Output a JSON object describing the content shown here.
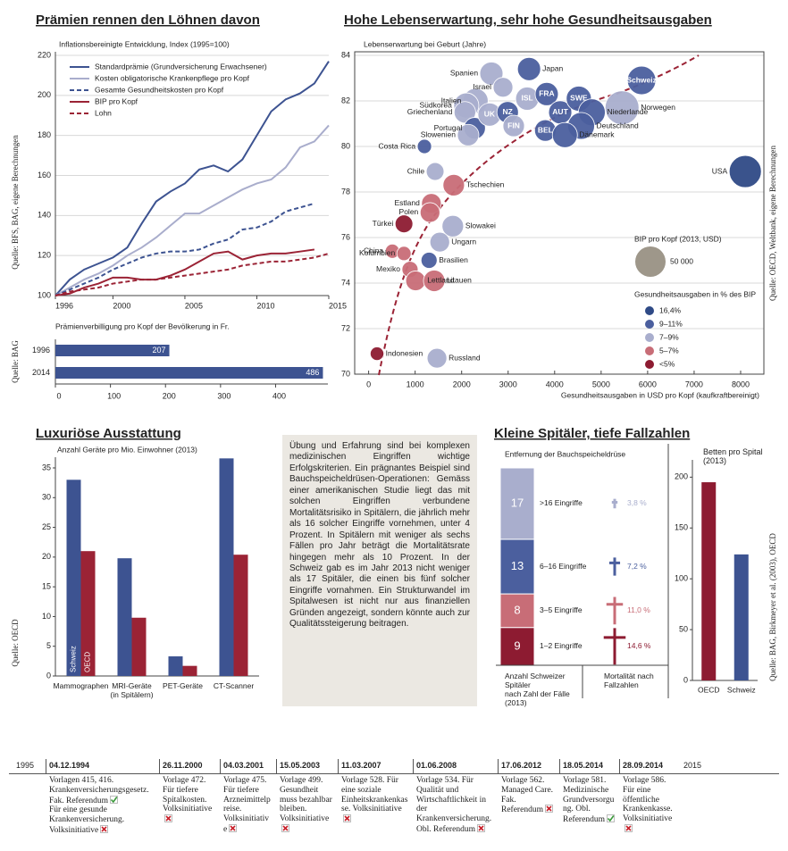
{
  "chart_data": [
    {
      "type": "line",
      "title": "Prämien rennen den Löhnen davon",
      "subtitle": "Inflationsbereinigte Entwicklung, Index (1995=100)",
      "source": "Quelle: BFS, BAG, eigene Berechnungen",
      "x": [
        1996,
        1997,
        1998,
        1999,
        2000,
        2001,
        2002,
        2003,
        2004,
        2005,
        2006,
        2007,
        2008,
        2009,
        2010,
        2011,
        2012,
        2013,
        2014,
        2015
      ],
      "xlim": [
        1996,
        2015
      ],
      "xticks": [
        1996,
        2000,
        2005,
        2010,
        2015
      ],
      "ylim": [
        100,
        220
      ],
      "yticks": [
        100,
        120,
        140,
        160,
        180,
        200,
        220
      ],
      "grid": true,
      "series": [
        {
          "name": "Standardprämie (Grundversicherung Erwachsener)",
          "color": "#3d5391",
          "dashed": false,
          "values": [
            100,
            108,
            113,
            116,
            119,
            124,
            136,
            147,
            152,
            156,
            163,
            165,
            162,
            168,
            180,
            192,
            198,
            201,
            206,
            217
          ]
        },
        {
          "name": "Kosten obligatorische Krankenpflege pro Kopf",
          "color": "#a9adcc",
          "dashed": false,
          "values": [
            100,
            104,
            108,
            111,
            115,
            120,
            124,
            129,
            135,
            141,
            141,
            145,
            149,
            153,
            156,
            158,
            164,
            174,
            177,
            185
          ]
        },
        {
          "name": "Gesamte Gesundheitskosten pro Kopf",
          "color": "#3d5391",
          "dashed": true,
          "values": [
            100,
            103,
            106,
            109,
            113,
            116,
            119,
            121,
            122,
            122,
            123,
            126,
            128,
            133,
            134,
            137,
            142,
            144,
            146,
            null
          ]
        },
        {
          "name": "BIP pro Kopf",
          "color": "#9b2335",
          "dashed": false,
          "values": [
            100,
            101,
            104,
            106,
            109,
            109,
            108,
            108,
            110,
            113,
            117,
            121,
            122,
            118,
            120,
            121,
            121,
            122,
            123,
            null
          ]
        },
        {
          "name": "Lohn",
          "color": "#9b2335",
          "dashed": true,
          "values": [
            100,
            102,
            103,
            104,
            106,
            107,
            108,
            108,
            109,
            110,
            111,
            112,
            113,
            115,
            116,
            117,
            117,
            118,
            119,
            121
          ]
        }
      ]
    },
    {
      "type": "hbar",
      "subtitle": "Prämienverbilligung pro Kopf der Bevölkerung in Fr.",
      "source": "Quelle: BAG",
      "categories": [
        "1996",
        "2014"
      ],
      "values": [
        207,
        486
      ],
      "color": "#3d5391",
      "xlim": [
        0,
        495
      ],
      "xticks": [
        0,
        100,
        200,
        300,
        400
      ]
    },
    {
      "type": "bubble",
      "title": "Hohe Lebenserwartung, sehr hohe Gesundheitsausgaben",
      "ylabel": "Lebenserwartung bei Geburt (Jahre)",
      "xlabel": "Gesundheitsausgaben in USD pro Kopf (kaufkraftbereinigt)",
      "source": "Quelle: OECD, Weltbank, eigene Berechnungen",
      "xlim": [
        -300,
        8500
      ],
      "xticks": [
        0,
        1000,
        2000,
        3000,
        4000,
        5000,
        6000,
        7000,
        8000
      ],
      "ylim": [
        70,
        84
      ],
      "yticks": [
        70,
        72,
        74,
        76,
        78,
        80,
        82,
        84
      ],
      "grid": true,
      "labels": [
        "Japan",
        "Spanien",
        "Israel",
        "Italien",
        "Südkorea",
        "Griechenland",
        "Portugal",
        "Slowenien",
        "UK",
        "NZ",
        "ISL",
        "FRA",
        "FIN",
        "BEL",
        "AUT",
        "SWE",
        "Schweiz",
        "Norwegen",
        "Niederlande",
        "Deutschland",
        "Dänemark",
        "Costa Rica",
        "USA",
        "Chile",
        "Tschechien",
        "Estland",
        "Polen",
        "Türkei",
        "Slowakei",
        "Ungarn",
        "China",
        "Kolumbien",
        "Brasilien",
        "Mexiko",
        "Lettland",
        "Litauen",
        "Indonesien",
        "Russland"
      ],
      "x": [
        3450,
        2640,
        2890,
        2300,
        2100,
        2070,
        2280,
        2140,
        2600,
        2990,
        3410,
        3830,
        3120,
        3800,
        4120,
        4520,
        5870,
        5450,
        4800,
        4570,
        4220,
        1200,
        8100,
        1430,
        1830,
        1350,
        1320,
        760,
        1810,
        1530,
        510,
        760,
        1300,
        890,
        1010,
        1410,
        180,
        1470
      ],
      "values": [
        83.4,
        83.2,
        82.6,
        82.0,
        81.8,
        81.5,
        80.8,
        80.5,
        81.4,
        81.5,
        82.1,
        82.3,
        80.9,
        80.7,
        81.5,
        82.1,
        82.9,
        81.7,
        81.5,
        80.9,
        80.5,
        80.0,
        78.9,
        78.9,
        78.3,
        77.5,
        77.1,
        76.6,
        76.5,
        75.8,
        75.4,
        75.3,
        75.0,
        74.6,
        74.1,
        74.1,
        70.9,
        70.7
      ],
      "sizes": [
        29000,
        29000,
        21000,
        34000,
        34000,
        25000,
        25000,
        25000,
        29000,
        25000,
        29000,
        29000,
        25000,
        25000,
        29000,
        34000,
        44000,
        62000,
        39000,
        39000,
        34000,
        11000,
        56000,
        17000,
        25000,
        21000,
        21000,
        17000,
        25000,
        21000,
        11000,
        11000,
        14000,
        14000,
        21000,
        25000,
        10000,
        21000
      ],
      "colors": [
        "#4b5f9e",
        "#a9aecd",
        "#a9aecd",
        "#a9aecd",
        "#a9aecd",
        "#a9aecd",
        "#4b5f9e",
        "#a9aecd",
        "#a9aecd",
        "#4b5f9e",
        "#a9aecd",
        "#4b5f9e",
        "#a9aecd",
        "#4b5f9e",
        "#4b5f9e",
        "#4b5f9e",
        "#4b5f9e",
        "#a9aecd",
        "#4b5f9e",
        "#4b5f9e",
        "#4b5f9e",
        "#4b5f9e",
        "#2f4a86",
        "#a9aecd",
        "#c86d77",
        "#c86d77",
        "#c86d77",
        "#8d1b31",
        "#a9aecd",
        "#a9aecd",
        "#c86d77",
        "#c86d77",
        "#4b5f9e",
        "#c86d77",
        "#c86d77",
        "#c86d77",
        "#8d1b31",
        "#a9aecd"
      ],
      "size_legend": {
        "title": "BIP pro Kopf (2013, USD)",
        "size": {
          "value": 50000,
          "label": "50 000"
        },
        "color": "#9e978a"
      },
      "color_legend": {
        "title": "Gesundheitsausgaben in % des BIP",
        "entries": [
          {
            "label": "16,4%",
            "color": "#2f4a86"
          },
          {
            "label": "9–11%",
            "color": "#4b5f9e"
          },
          {
            "label": "7–9%",
            "color": "#a9aecd"
          },
          {
            "label": "5–7%",
            "color": "#c86d77"
          },
          {
            "label": "<5%",
            "color": "#8d1b31"
          }
        ]
      }
    },
    {
      "type": "grouped_bar",
      "title": "Luxuriöse Ausstattung",
      "subtitle": "Anzahl Geräte pro Mio. Einwohner (2013)",
      "source": "Quelle: OECD",
      "categories": [
        "Mammographen",
        "MRI-Geräte\n(in Spitälern)",
        "PET-Geräte",
        "CT-Scanner"
      ],
      "series": [
        {
          "name": "Schweiz",
          "color": "#3d5391",
          "values": [
            33,
            19.8,
            3.3,
            36.6
          ]
        },
        {
          "name": "OECD",
          "color": "#9b2335",
          "values": [
            21,
            9.8,
            1.7,
            20.4
          ]
        }
      ],
      "ylim": [
        0,
        36.8
      ],
      "yticks": [
        0,
        5,
        10,
        15,
        20,
        25,
        30,
        35
      ]
    },
    {
      "type": "stacked_column",
      "title": "Kleine Spitäler, tiefe Fallzahlen",
      "subtitle": "Entfernung der Bauchspeicheldrüse",
      "categories": [
        "1–2 Eingriffe",
        "3–5 Eingriffe",
        "6–16 Eingriffe",
        ">16 Eingriffe"
      ],
      "colors": [
        "#8d1b31",
        "#c86d77",
        "#4b5f9e",
        "#a9aecd"
      ],
      "series": [
        {
          "name": "Anzahl Schweizer Spitäler\nnach Zahl der Fälle (2013)",
          "values": [
            9,
            8,
            13,
            17
          ]
        },
        {
          "name": "Mortalität nach\nFallzahlen",
          "values": [
            14.6,
            11.0,
            7.2,
            3.8
          ],
          "value_labels": [
            "14,6 %",
            "11,0 %",
            "7,2 %",
            "3,8 %"
          ]
        }
      ]
    },
    {
      "type": "bar",
      "title": "Betten pro Spital\n(2013)",
      "source": "Quelle: BAG, Birkmeyer et al. (2003), OECD",
      "categories": [
        "OECD",
        "Schweiz"
      ],
      "values": [
        195,
        124
      ],
      "colors": [
        "#8d1b31",
        "#3d5391"
      ],
      "ylim": [
        0,
        217
      ],
      "yticks": [
        0,
        50,
        100,
        150,
        200
      ]
    }
  ],
  "article": {
    "text": "Übung und Erfahrung sind bei komplexen medizinischen Eingriffen wichtige Erfolgskriterien. Ein prägnantes Beispiel sind Bauchspeicheldrüsen-Operationen: Gemäss einer amerikanischen Studie liegt das mit solchen Eingriffen verbundene Mortalitätsrisiko in Spitälern, die jährlich mehr als 16 solcher Eingriffe vornehmen, unter 4 Prozent. In Spitälern mit weniger als sechs Fällen pro Jahr beträgt die Mortalitätsrate hingegen mehr als 10 Prozent. In der Schweiz gab es im Jahr 2013 nicht weniger als 17 Spitäler, die einen bis fünf solcher Eingriffe vornahmen. Ein Strukturwandel im Spitalwesen ist nicht nur aus finanziellen Gründen angezeigt, sondern könnte auch zur Qualitätssteigerung beitragen."
  },
  "timeline": {
    "start": "1995",
    "end": "2015",
    "events": [
      {
        "date": "04.12.1994",
        "items": [
          {
            "text": "Vorlagen 415, 416. Krankenversicherungsgesetz. Fak. Referendum",
            "accepted": true
          },
          {
            "text": "Für eine gesunde Krankenversicherung. Volksinitiative",
            "accepted": false
          }
        ]
      },
      {
        "date": "26.11.2000",
        "items": [
          {
            "text": "Vorlage 472. Für tiefere Spitalkosten. Volksinitiative",
            "accepted": false
          }
        ]
      },
      {
        "date": "04.03.2001",
        "items": [
          {
            "text": "Vorlage 475. Für tiefere Arzneimittelpreise. Volksinitiative",
            "accepted": false
          }
        ]
      },
      {
        "date": "15.05.2003",
        "items": [
          {
            "text": "Vorlage 499. Gesundheit muss bezahlbar bleiben. Volksinitiative",
            "accepted": false
          }
        ]
      },
      {
        "date": "11.03.2007",
        "items": [
          {
            "text": "Vorlage 528. Für eine soziale Einheitskrankenkasse. Volksinitiative",
            "accepted": false
          }
        ]
      },
      {
        "date": "01.06.2008",
        "items": [
          {
            "text": "Vorlage 534. Für Qualität und Wirtschaftlichkeit in der Krankenversicherung. Obl. Referendum",
            "accepted": false
          }
        ]
      },
      {
        "date": "17.06.2012",
        "items": [
          {
            "text": "Vorlage 562. Managed Care. Fak. Referendum",
            "accepted": false
          }
        ]
      },
      {
        "date": "18.05.2014",
        "items": [
          {
            "text": "Vorlage 581. Medizinische Grundversorgung. Obl. Referendum",
            "accepted": true
          }
        ]
      },
      {
        "date": "28.09.2014",
        "items": [
          {
            "text": "Vorlage 586. Für eine öffentliche Krankenkasse. Volksinitiative",
            "accepted": false
          }
        ]
      }
    ]
  }
}
